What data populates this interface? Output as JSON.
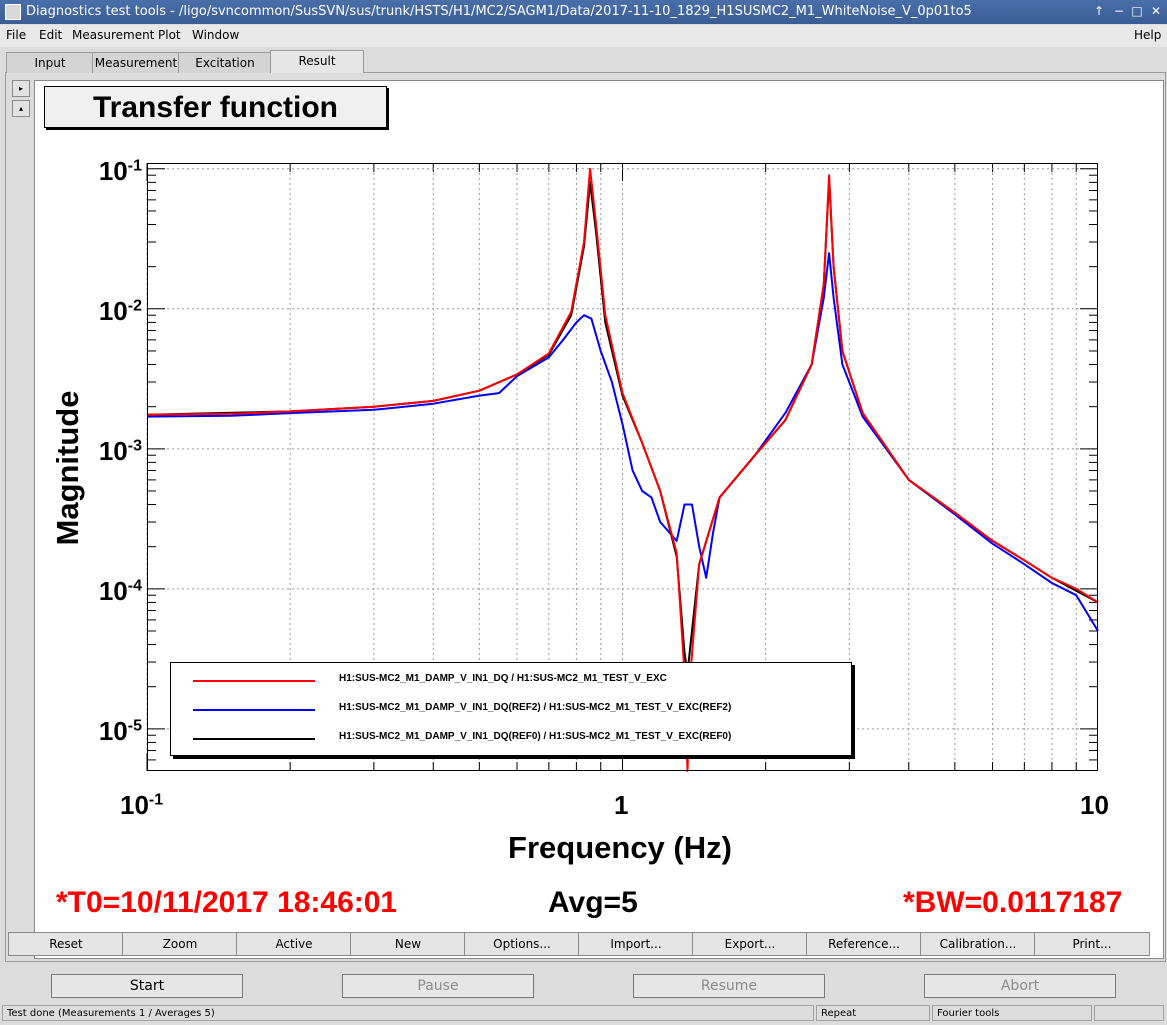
{
  "window": {
    "title": "Diagnostics test tools - /ligo/svncommon/SusSVN/sus/trunk/HSTS/H1/MC2/SAGM1/Data/2017-11-10_1829_H1SUSMC2_M1_WhiteNoise_V_0p01to5",
    "btn_up": "↑",
    "btn_down": "−",
    "btn_max": "□",
    "btn_close": "✕"
  },
  "menu": {
    "file": "File",
    "edit": "Edit",
    "measurement": "Measurement",
    "plot": "Plot",
    "window": "Window",
    "help": "Help"
  },
  "tabs": [
    "Input",
    "Measurement",
    "Excitation",
    "Result"
  ],
  "side_arrows": {
    "right": "▸",
    "up": "▴"
  },
  "plot": {
    "title": "Transfer function"
  },
  "chart_data": {
    "type": "line",
    "title": "Transfer function",
    "xlabel": "Frequency (Hz)",
    "ylabel": "Magnitude",
    "xscale": "log",
    "yscale": "log",
    "xlim": [
      0.1,
      10
    ],
    "ylim": [
      5e-06,
      0.11
    ],
    "grid": true,
    "legend_position": "bottom-left",
    "x_tick_labels": [
      {
        "base": "10",
        "exp": "-1"
      },
      {
        "base": "1",
        "exp": ""
      },
      {
        "base": "10",
        "exp": ""
      }
    ],
    "y_tick_labels": [
      {
        "base": "10",
        "exp": "-1"
      },
      {
        "base": "10",
        "exp": "-2"
      },
      {
        "base": "10",
        "exp": "-3"
      },
      {
        "base": "10",
        "exp": "-4"
      },
      {
        "base": "10",
        "exp": "-5"
      }
    ],
    "series": [
      {
        "name": "H1:SUS-MC2_M1_DAMP_V_IN1_DQ / H1:SUS-MC2_M1_TEST_V_EXC",
        "color": "#ff0000",
        "points": [
          [
            0.1,
            0.00175
          ],
          [
            0.15,
            0.00178
          ],
          [
            0.2,
            0.00185
          ],
          [
            0.3,
            0.002
          ],
          [
            0.4,
            0.0022
          ],
          [
            0.5,
            0.0026
          ],
          [
            0.6,
            0.0034
          ],
          [
            0.7,
            0.0048
          ],
          [
            0.78,
            0.0095
          ],
          [
            0.83,
            0.03
          ],
          [
            0.855,
            0.1
          ],
          [
            0.88,
            0.04
          ],
          [
            0.92,
            0.009
          ],
          [
            1.0,
            0.0025
          ],
          [
            1.1,
            0.0011
          ],
          [
            1.2,
            0.0005
          ],
          [
            1.3,
            0.00018
          ],
          [
            1.35,
            2.5e-05
          ],
          [
            1.37,
            4.5e-06
          ],
          [
            1.39,
            2.5e-05
          ],
          [
            1.45,
            0.00015
          ],
          [
            1.6,
            0.00045
          ],
          [
            1.9,
            0.0009
          ],
          [
            2.2,
            0.0016
          ],
          [
            2.5,
            0.004
          ],
          [
            2.65,
            0.015
          ],
          [
            2.72,
            0.09
          ],
          [
            2.78,
            0.02
          ],
          [
            2.9,
            0.005
          ],
          [
            3.2,
            0.0018
          ],
          [
            4.0,
            0.0006
          ],
          [
            5.0,
            0.00035
          ],
          [
            6.0,
            0.00022
          ],
          [
            7.0,
            0.00016
          ],
          [
            8.0,
            0.00012
          ],
          [
            9.0,
            0.0001
          ],
          [
            10.0,
            8e-05
          ]
        ]
      },
      {
        "name": "H1:SUS-MC2_M1_DAMP_V_IN1_DQ(REF2) / H1:SUS-MC2_M1_TEST_V_EXC(REF2)",
        "color": "#0000ff",
        "points": [
          [
            0.1,
            0.0017
          ],
          [
            0.15,
            0.00172
          ],
          [
            0.2,
            0.0018
          ],
          [
            0.3,
            0.0019
          ],
          [
            0.4,
            0.0021
          ],
          [
            0.5,
            0.0024
          ],
          [
            0.55,
            0.0025
          ],
          [
            0.6,
            0.0033
          ],
          [
            0.7,
            0.0045
          ],
          [
            0.75,
            0.006
          ],
          [
            0.8,
            0.008
          ],
          [
            0.83,
            0.009
          ],
          [
            0.86,
            0.0085
          ],
          [
            0.9,
            0.005
          ],
          [
            0.95,
            0.003
          ],
          [
            1.0,
            0.0015
          ],
          [
            1.05,
            0.0007
          ],
          [
            1.1,
            0.0005
          ],
          [
            1.15,
            0.00045
          ],
          [
            1.2,
            0.0003
          ],
          [
            1.3,
            0.00022
          ],
          [
            1.35,
            0.0004
          ],
          [
            1.4,
            0.0004
          ],
          [
            1.45,
            0.0002
          ],
          [
            1.5,
            0.00012
          ],
          [
            1.55,
            0.00025
          ],
          [
            1.6,
            0.00045
          ],
          [
            1.9,
            0.0009
          ],
          [
            2.2,
            0.0018
          ],
          [
            2.5,
            0.004
          ],
          [
            2.65,
            0.012
          ],
          [
            2.72,
            0.025
          ],
          [
            2.78,
            0.012
          ],
          [
            2.9,
            0.004
          ],
          [
            3.2,
            0.0017
          ],
          [
            4.0,
            0.0006
          ],
          [
            5.0,
            0.00034
          ],
          [
            6.0,
            0.00021
          ],
          [
            7.0,
            0.00015
          ],
          [
            8.0,
            0.00011
          ],
          [
            9.0,
            9e-05
          ],
          [
            10.0,
            5e-05
          ]
        ]
      },
      {
        "name": "H1:SUS-MC2_M1_DAMP_V_IN1_DQ(REF0) / H1:SUS-MC2_M1_TEST_V_EXC(REF0)",
        "color": "#000000",
        "points": [
          [
            0.1,
            0.00175
          ],
          [
            0.2,
            0.00185
          ],
          [
            0.3,
            0.002
          ],
          [
            0.4,
            0.0022
          ],
          [
            0.5,
            0.0026
          ],
          [
            0.6,
            0.0034
          ],
          [
            0.7,
            0.0047
          ],
          [
            0.78,
            0.009
          ],
          [
            0.83,
            0.028
          ],
          [
            0.855,
            0.08
          ],
          [
            0.88,
            0.035
          ],
          [
            0.92,
            0.008
          ],
          [
            1.0,
            0.0024
          ],
          [
            1.1,
            0.0011
          ],
          [
            1.2,
            0.0005
          ],
          [
            1.3,
            0.00017
          ],
          [
            1.35,
            3.5e-05
          ],
          [
            1.37,
            2.5e-05
          ],
          [
            1.39,
            4e-05
          ],
          [
            1.45,
            0.00015
          ],
          [
            1.6,
            0.00045
          ],
          [
            1.9,
            0.0009
          ],
          [
            2.2,
            0.0016
          ],
          [
            2.5,
            0.004
          ],
          [
            2.65,
            0.015
          ],
          [
            2.72,
            0.085
          ],
          [
            2.78,
            0.02
          ],
          [
            2.9,
            0.005
          ],
          [
            3.2,
            0.0018
          ],
          [
            4.0,
            0.0006
          ],
          [
            5.0,
            0.00035
          ],
          [
            6.0,
            0.00022
          ],
          [
            7.0,
            0.00016
          ],
          [
            8.0,
            0.00012
          ],
          [
            10.0,
            8e-05
          ]
        ]
      }
    ]
  },
  "stats": {
    "t0": "*T0=10/11/2017 18:46:01",
    "avg": "Avg=5",
    "bw": "*BW=0.0117187",
    "color": "#ff0000"
  },
  "plot_buttons": [
    "Reset",
    "Zoom",
    "Active",
    "New",
    "Options...",
    "Import...",
    "Export...",
    "Reference...",
    "Calibration...",
    "Print..."
  ],
  "control_buttons": {
    "start": "Start",
    "pause": "Pause",
    "resume": "Resume",
    "abort": "Abort"
  },
  "status": {
    "message": "Test done (Measurements 1 / Averages 5)",
    "mode": "Repeat",
    "tool": "Fourier tools"
  }
}
